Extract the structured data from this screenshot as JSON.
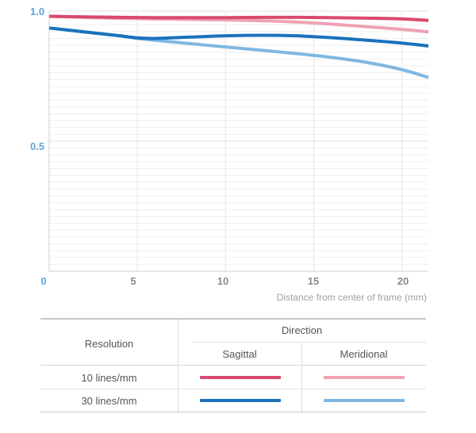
{
  "chart_data": {
    "type": "line",
    "xlabel": "Distance from center of frame (mm)",
    "ylabel": "",
    "xlim": [
      0,
      21.5
    ],
    "ylim": [
      0,
      1.0
    ],
    "x_ticks": [
      "0",
      "5",
      "10",
      "15",
      "20"
    ],
    "y_ticks": [
      "0.5",
      "1.0"
    ],
    "grid": true,
    "series": [
      {
        "resolution": "10 lines/mm",
        "direction": "Sagittal",
        "color": "#d94a6e",
        "x": [
          0,
          2,
          4,
          6,
          8,
          10,
          12,
          14,
          16,
          18,
          20,
          21.5
        ],
        "y": [
          0.98,
          0.978,
          0.976,
          0.975,
          0.975,
          0.975,
          0.976,
          0.976,
          0.975,
          0.973,
          0.97,
          0.964
        ]
      },
      {
        "resolution": "10 lines/mm",
        "direction": "Meridional",
        "color": "#f0a2b4",
        "x": [
          0,
          2,
          4,
          6,
          8,
          10,
          12,
          14,
          16,
          18,
          20,
          21.5
        ],
        "y": [
          0.98,
          0.976,
          0.972,
          0.97,
          0.968,
          0.966,
          0.963,
          0.958,
          0.95,
          0.94,
          0.93,
          0.92
        ]
      },
      {
        "resolution": "30 lines/mm",
        "direction": "Sagittal",
        "color": "#1a72bd",
        "x": [
          0,
          2,
          4,
          5,
          6,
          8,
          10,
          12,
          14,
          16,
          18,
          20,
          21.5
        ],
        "y": [
          0.935,
          0.92,
          0.905,
          0.897,
          0.895,
          0.9,
          0.905,
          0.907,
          0.905,
          0.898,
          0.888,
          0.877,
          0.866
        ]
      },
      {
        "resolution": "30 lines/mm",
        "direction": "Meridional",
        "color": "#7fb7e2",
        "x": [
          0,
          2,
          4,
          5,
          6,
          8,
          10,
          12,
          14,
          16,
          18,
          20,
          21.5
        ],
        "y": [
          0.935,
          0.92,
          0.905,
          0.895,
          0.888,
          0.875,
          0.862,
          0.85,
          0.837,
          0.822,
          0.803,
          0.775,
          0.745
        ]
      }
    ]
  },
  "legend": {
    "resolution_header": "Resolution",
    "direction_header": "Direction",
    "sagittal_label": "Sagittal",
    "meridional_label": "Meridional",
    "rows": [
      {
        "label": "10 lines/mm",
        "sagittal_color": "#d94a6e",
        "meridional_color": "#f0a2b4"
      },
      {
        "label": "30 lines/mm",
        "sagittal_color": "#1a72bd",
        "meridional_color": "#7fb7e2"
      }
    ]
  }
}
